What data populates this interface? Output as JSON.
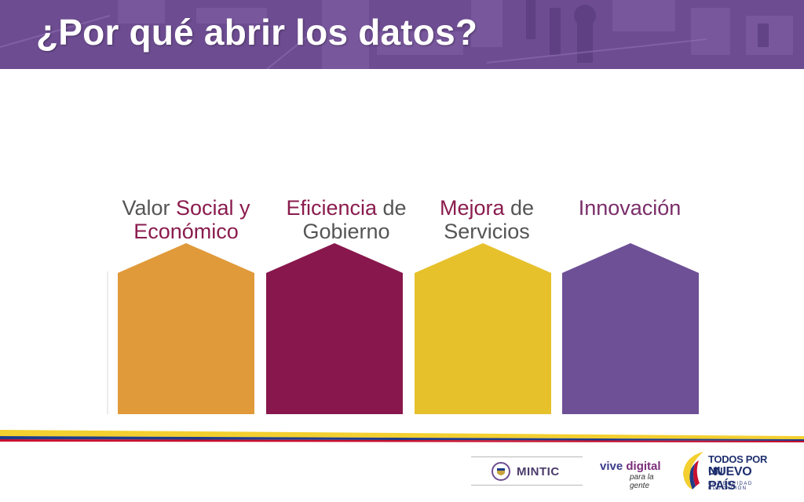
{
  "slide": {
    "title": "¿Por qué abrir los datos?"
  },
  "pillars": [
    {
      "pre": "Valor ",
      "highlight": "Social y",
      "line2": "Económico",
      "color": "#e09a3a"
    },
    {
      "highlight": "Eficiencia",
      "post": " de",
      "line2": "Gobierno",
      "color": "#88174d"
    },
    {
      "highlight": "Mejora",
      "post": " de",
      "line2": "Servicios",
      "color": "#e6c12c"
    },
    {
      "highlight": "Innovación",
      "color": "#6e5096"
    }
  ],
  "colors": {
    "header": "#6d4c91",
    "highlight_text": "#8a1c4e",
    "body_text": "#555555",
    "flag_yellow": "#f3cf2f",
    "flag_blue": "#1f3c88",
    "flag_red": "#c8102e"
  },
  "footer": {
    "mintic_label": "MINTIC",
    "vive_digital_a": "vive ",
    "vive_digital_b": "digital",
    "vive_digital_sub": "para la gente",
    "tpn_line1": "TODOS POR UN",
    "tpn_line2": "NUEVO PAÍS",
    "tpn_line3": "PAZ   EQUIDAD   EDUCACIÓN"
  }
}
